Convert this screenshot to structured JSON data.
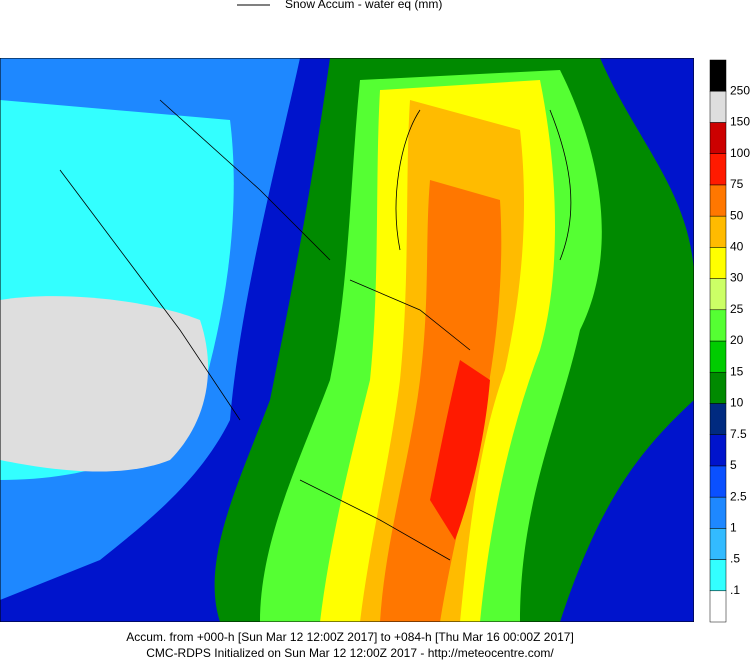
{
  "legend": {
    "label": "Snow Accum - water eq (mm)"
  },
  "colorbar": {
    "colors": [
      "#ffffff",
      "#33ffff",
      "#33bbff",
      "#1e88ff",
      "#0a50ff",
      "#0014cc",
      "#002a80",
      "#008a00",
      "#00cc00",
      "#55ff33",
      "#ccff66",
      "#ffff00",
      "#ffbb00",
      "#ff7700",
      "#ff1a00",
      "#cc0000",
      "#990000",
      "#ff00cc",
      "#dedede",
      "#000000"
    ],
    "labels": [
      ".1",
      ".5",
      "1",
      "2.5",
      "5",
      "7.5",
      "10",
      "15",
      "20",
      "25",
      "30",
      "40",
      "50",
      "75",
      "100",
      "150",
      "250"
    ]
  },
  "footer": {
    "lines": [
      "Accum. from +000-h [Sun Mar 12 12:00Z 2017] to +084-h [Thu Mar 16 00:00Z 2017]",
      "CMC-RDPS Initialized on Sun Mar 12 12:00Z 2017 - http://meteocentre.com/"
    ]
  }
}
